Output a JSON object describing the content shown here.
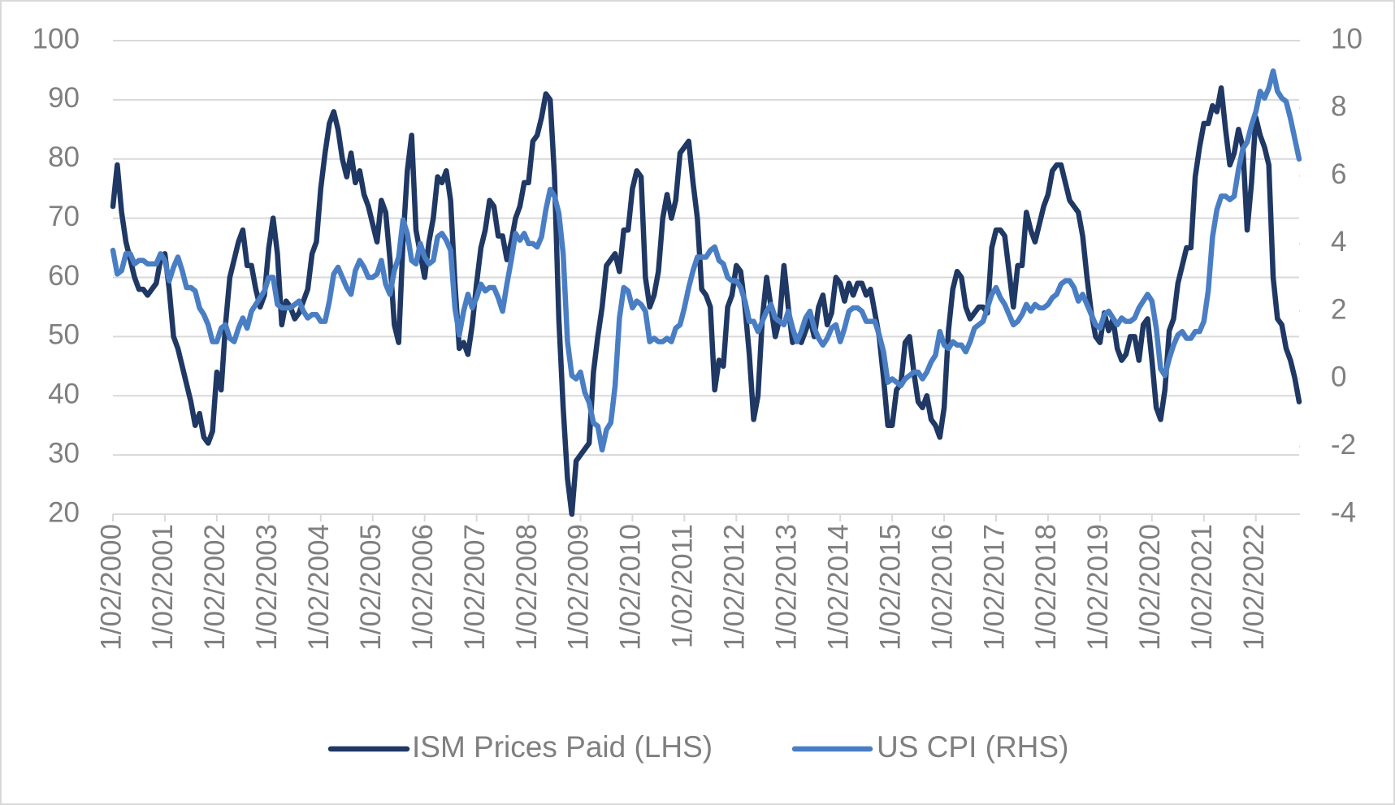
{
  "chart_data": {
    "type": "line",
    "categories": [
      "1/02/2000",
      null,
      null,
      null,
      null,
      null,
      null,
      null,
      null,
      null,
      null,
      null,
      "1/02/2001",
      null,
      null,
      null,
      null,
      null,
      null,
      null,
      null,
      null,
      null,
      null,
      "1/02/2002",
      null,
      null,
      null,
      null,
      null,
      null,
      null,
      null,
      null,
      null,
      null,
      "1/02/2003",
      null,
      null,
      null,
      null,
      null,
      null,
      null,
      null,
      null,
      null,
      null,
      "1/02/2004",
      null,
      null,
      null,
      null,
      null,
      null,
      null,
      null,
      null,
      null,
      null,
      "1/02/2005",
      null,
      null,
      null,
      null,
      null,
      null,
      null,
      null,
      null,
      null,
      null,
      "1/02/2006",
      null,
      null,
      null,
      null,
      null,
      null,
      null,
      null,
      null,
      null,
      null,
      "1/02/2007",
      null,
      null,
      null,
      null,
      null,
      null,
      null,
      null,
      null,
      null,
      null,
      "1/02/2008",
      null,
      null,
      null,
      null,
      null,
      null,
      null,
      null,
      null,
      null,
      null,
      "1/02/2009",
      null,
      null,
      null,
      null,
      null,
      null,
      null,
      null,
      null,
      null,
      null,
      "1/02/2010",
      null,
      null,
      null,
      null,
      null,
      null,
      null,
      null,
      null,
      null,
      null,
      "1/02/2011",
      null,
      null,
      null,
      null,
      null,
      null,
      null,
      null,
      null,
      null,
      null,
      "1/02/2012",
      null,
      null,
      null,
      null,
      null,
      null,
      null,
      null,
      null,
      null,
      null,
      "1/02/2013",
      null,
      null,
      null,
      null,
      null,
      null,
      null,
      null,
      null,
      null,
      null,
      "1/02/2014",
      null,
      null,
      null,
      null,
      null,
      null,
      null,
      null,
      null,
      null,
      null,
      "1/02/2015",
      null,
      null,
      null,
      null,
      null,
      null,
      null,
      null,
      null,
      null,
      null,
      "1/02/2016",
      null,
      null,
      null,
      null,
      null,
      null,
      null,
      null,
      null,
      null,
      null,
      "1/02/2017",
      null,
      null,
      null,
      null,
      null,
      null,
      null,
      null,
      null,
      null,
      null,
      "1/02/2018",
      null,
      null,
      null,
      null,
      null,
      null,
      null,
      null,
      null,
      null,
      null,
      "1/02/2019",
      null,
      null,
      null,
      null,
      null,
      null,
      null,
      null,
      null,
      null,
      null,
      "1/02/2020",
      null,
      null,
      null,
      null,
      null,
      null,
      null,
      null,
      null,
      null,
      null,
      "1/02/2021",
      null,
      null,
      null,
      null,
      null,
      null,
      null,
      null,
      null,
      null,
      null,
      "1/02/2022",
      null,
      null,
      null,
      null,
      null,
      null,
      null,
      null,
      null,
      null
    ],
    "series": [
      {
        "name": "ISM Prices Paid (LHS)",
        "color": "#1f3864",
        "axis": "y",
        "values": [
          72,
          79,
          71,
          66,
          63,
          60,
          58,
          58,
          57,
          58,
          59,
          63,
          64,
          58,
          50,
          48,
          45,
          42,
          39,
          35,
          37,
          33,
          32,
          34,
          44,
          41,
          52,
          60,
          63,
          66,
          68,
          62,
          62,
          58,
          55,
          57,
          65,
          70,
          64,
          52,
          56,
          55,
          53,
          54,
          56,
          58,
          64,
          66,
          75,
          81,
          86,
          88,
          85,
          80,
          77,
          81,
          76,
          78,
          74,
          72,
          69,
          66,
          73,
          71,
          63,
          52,
          49,
          66,
          78,
          84,
          68,
          64,
          60,
          66,
          70,
          77,
          76,
          78,
          73,
          59,
          48,
          49,
          47,
          52,
          59,
          65,
          68,
          73,
          72,
          67,
          67,
          63,
          66,
          70,
          72,
          76,
          76,
          83,
          84,
          87,
          91,
          90,
          77,
          53,
          38,
          26,
          20,
          29,
          30,
          31,
          32,
          44,
          50,
          55,
          62,
          63,
          64,
          61,
          68,
          68,
          75,
          78,
          77,
          60,
          55,
          57,
          61,
          70,
          74,
          70,
          73,
          81,
          82,
          83,
          76,
          70,
          58,
          57,
          55,
          41,
          46,
          45,
          55,
          57,
          62,
          61,
          55,
          47,
          36,
          40,
          53,
          60,
          55,
          50,
          53,
          62,
          55,
          49,
          50,
          49,
          51,
          53,
          50,
          55,
          57,
          52,
          54,
          60,
          59,
          56,
          59,
          57,
          59,
          59,
          57,
          58,
          54,
          50,
          43,
          35,
          35,
          41,
          42,
          49,
          50,
          44,
          39,
          38,
          40,
          36,
          35,
          33,
          38,
          51,
          58,
          61,
          60,
          55,
          53,
          54,
          55,
          55,
          54,
          65,
          68,
          68,
          67,
          61,
          55,
          62,
          62,
          71,
          68,
          66,
          69,
          72,
          74,
          78,
          79,
          79,
          76,
          73,
          72,
          71,
          67,
          60,
          54,
          50,
          49,
          54,
          51,
          53,
          48,
          46,
          47,
          50,
          50,
          46,
          52,
          53,
          46,
          38,
          36,
          41,
          51,
          53,
          59,
          62,
          65,
          65,
          77,
          82,
          86,
          86,
          89,
          88,
          92,
          85,
          79,
          81,
          85,
          82,
          68,
          76,
          87,
          84,
          82,
          79,
          60,
          53,
          52,
          48,
          46,
          43,
          39
        ]
      },
      {
        "name": "US CPI (RHS)",
        "color": "#4a7ec4",
        "axis": "y2",
        "values": [
          3.8,
          3.1,
          3.2,
          3.7,
          3.7,
          3.4,
          3.5,
          3.5,
          3.4,
          3.4,
          3.4,
          3.7,
          3.5,
          2.9,
          3.3,
          3.6,
          3.2,
          2.7,
          2.7,
          2.6,
          2.1,
          1.9,
          1.6,
          1.1,
          1.1,
          1.5,
          1.6,
          1.2,
          1.1,
          1.5,
          1.8,
          1.5,
          2.0,
          2.2,
          2.4,
          2.6,
          3.0,
          3.0,
          2.2,
          2.1,
          2.1,
          2.1,
          2.2,
          2.3,
          2.0,
          1.8,
          1.9,
          1.9,
          1.7,
          1.7,
          2.3,
          3.1,
          3.3,
          3.0,
          2.7,
          2.5,
          3.2,
          3.5,
          3.3,
          3.0,
          3.0,
          3.1,
          3.5,
          2.8,
          2.5,
          3.2,
          3.6,
          4.7,
          4.3,
          3.5,
          3.4,
          4.0,
          3.6,
          3.4,
          3.5,
          4.2,
          4.3,
          4.1,
          3.8,
          2.1,
          1.3,
          2.0,
          2.5,
          2.1,
          2.4,
          2.8,
          2.6,
          2.7,
          2.7,
          2.4,
          2.0,
          2.8,
          3.5,
          4.3,
          4.1,
          4.3,
          4.0,
          4.0,
          3.9,
          4.2,
          5.0,
          5.6,
          5.4,
          4.9,
          3.7,
          1.1,
          0.1,
          0.0,
          0.2,
          -0.4,
          -0.7,
          -1.3,
          -1.4,
          -2.1,
          -1.5,
          -1.3,
          -0.2,
          1.8,
          2.7,
          2.6,
          2.1,
          2.3,
          2.2,
          2.0,
          1.1,
          1.2,
          1.1,
          1.1,
          1.2,
          1.1,
          1.5,
          1.6,
          2.1,
          2.7,
          3.2,
          3.6,
          3.6,
          3.6,
          3.8,
          3.9,
          3.5,
          3.4,
          3.0,
          2.9,
          2.9,
          2.7,
          2.3,
          1.7,
          1.7,
          1.4,
          1.7,
          2.0,
          2.2,
          1.8,
          1.7,
          1.6,
          2.0,
          1.5,
          1.1,
          1.4,
          1.8,
          2.0,
          1.5,
          1.2,
          1.0,
          1.2,
          1.5,
          1.6,
          1.1,
          1.5,
          2.0,
          2.1,
          2.1,
          2.0,
          1.7,
          1.7,
          1.7,
          1.3,
          0.8,
          -0.1,
          0.0,
          -0.1,
          -0.2,
          0.0,
          0.1,
          0.2,
          0.2,
          0.0,
          0.2,
          0.5,
          0.7,
          1.4,
          1.0,
          0.9,
          1.1,
          1.0,
          1.0,
          0.8,
          1.1,
          1.5,
          1.6,
          1.7,
          2.1,
          2.5,
          2.7,
          2.4,
          2.2,
          1.9,
          1.6,
          1.7,
          1.9,
          2.2,
          2.0,
          2.2,
          2.1,
          2.1,
          2.2,
          2.4,
          2.5,
          2.8,
          2.9,
          2.9,
          2.7,
          2.3,
          2.5,
          2.2,
          1.9,
          1.6,
          1.5,
          1.9,
          2.0,
          1.8,
          1.6,
          1.8,
          1.7,
          1.7,
          1.8,
          2.1,
          2.3,
          2.5,
          2.3,
          1.5,
          0.3,
          0.1,
          0.6,
          1.0,
          1.3,
          1.4,
          1.2,
          1.2,
          1.4,
          1.4,
          1.7,
          2.6,
          4.2,
          5.0,
          5.4,
          5.4,
          5.3,
          5.4,
          6.2,
          6.8,
          7.0,
          7.5,
          7.9,
          8.5,
          8.3,
          8.6,
          9.1,
          8.5,
          8.3,
          8.2,
          7.7,
          7.1,
          6.5
        ]
      }
    ],
    "ylim": [
      20,
      100
    ],
    "yticks": [
      20,
      30,
      40,
      50,
      60,
      70,
      80,
      90,
      100
    ],
    "y2lim": [
      -4,
      10
    ],
    "y2ticks": [
      -4,
      -2,
      0,
      2,
      4,
      6,
      8,
      10
    ],
    "grid": true,
    "legend": "bottom"
  }
}
